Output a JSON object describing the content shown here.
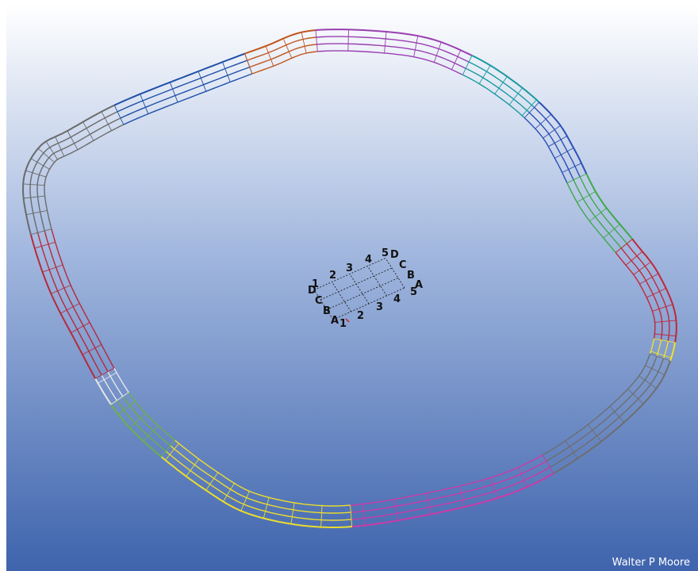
{
  "credit": "Walter P Moore",
  "background": {
    "top": "#ffffff",
    "mid": "#9fb5dd",
    "bottom": "#3f64ad"
  },
  "ring_segments": [
    {
      "id": "north-left",
      "color": "#1f4fa8"
    },
    {
      "id": "north-mid",
      "color": "#c0561e"
    },
    {
      "id": "north-right",
      "color": "#9a3fb0"
    },
    {
      "id": "ne-corner",
      "color": "#1a9aa0"
    },
    {
      "id": "east-upper",
      "color": "#2b4fb5"
    },
    {
      "id": "east-green",
      "color": "#3fa84a"
    },
    {
      "id": "east-red",
      "color": "#c0283a"
    },
    {
      "id": "east-yellow",
      "color": "#f0e02a"
    },
    {
      "id": "se-grey",
      "color": "#6e6e6e"
    },
    {
      "id": "south-magenta",
      "color": "#cc3aa8"
    },
    {
      "id": "south-yellow",
      "color": "#ecdd2c"
    },
    {
      "id": "sw-green",
      "color": "#6ab04a"
    },
    {
      "id": "sw-white",
      "color": "#e6e6e6"
    },
    {
      "id": "west-red",
      "color": "#b42a3c"
    },
    {
      "id": "west-grey",
      "color": "#6a6a6a"
    }
  ],
  "grid": {
    "back_numbers": [
      "2",
      "3",
      "4",
      "5"
    ],
    "back_letters": [
      "D",
      "C",
      "B",
      "A"
    ],
    "front_letters": [
      "D",
      "C",
      "B",
      "A"
    ],
    "front_numbers": [
      "1",
      "2",
      "3",
      "4",
      "5"
    ],
    "corner_number": "1"
  }
}
